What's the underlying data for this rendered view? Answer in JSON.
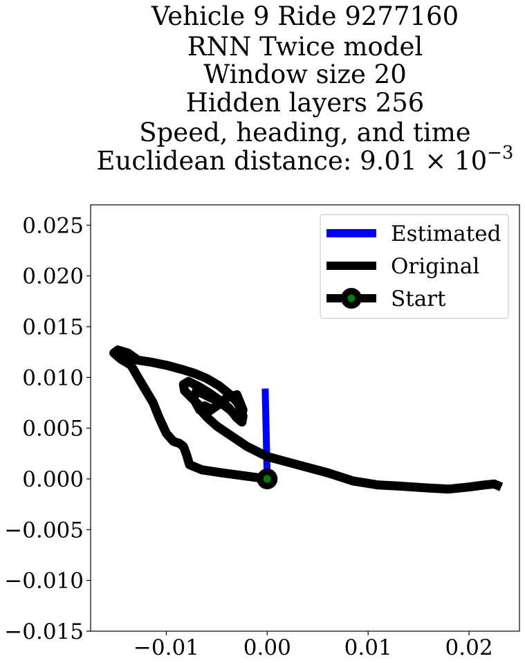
{
  "chart_data": {
    "type": "line",
    "title_lines": [
      "Vehicle 9 Ride 9277160",
      "RNN Twice model",
      "Window size 20",
      "Hidden layers 256",
      "Speed, heading, and time"
    ],
    "title_last_prefix": "Euclidean distance: 9.01 × 10",
    "title_last_exponent": "−3",
    "xlim": [
      -0.0175,
      0.025
    ],
    "ylim": [
      -0.015,
      0.027
    ],
    "x_ticks": [
      -0.01,
      0.0,
      0.01,
      0.02
    ],
    "x_tick_labels": [
      "−0.01",
      "0.00",
      "0.01",
      "0.02"
    ],
    "y_ticks": [
      0.025,
      0.02,
      0.015,
      0.01,
      0.005,
      0.0,
      -0.005,
      -0.01,
      -0.015
    ],
    "y_tick_labels": [
      "0.025",
      "0.020",
      "0.015",
      "0.010",
      "0.005",
      "0.000",
      "−0.005",
      "−0.010",
      "−0.015"
    ],
    "grid": false,
    "legend_placement": "top-right",
    "series": [
      {
        "name": "Estimated",
        "color": "#0000ff",
        "x": [
          0.0,
          -0.0002
        ],
        "y": [
          0.0,
          0.0089
        ]
      },
      {
        "name": "Original",
        "color": "#000000",
        "x": [
          0.0,
          -0.0045,
          -0.0065,
          -0.0077,
          -0.008,
          -0.0083,
          -0.0087,
          -0.0093,
          -0.01,
          -0.0107,
          -0.0113,
          -0.0122,
          -0.0128,
          -0.0135,
          -0.0145,
          -0.0152,
          -0.0148,
          -0.0138,
          -0.0128,
          -0.0115,
          -0.01,
          -0.0085,
          -0.0072,
          -0.006,
          -0.0048,
          -0.0038,
          -0.003,
          -0.0026,
          -0.0024,
          -0.0025,
          -0.003,
          -0.0038,
          -0.0048,
          -0.0058,
          -0.0068,
          -0.0078,
          -0.0083,
          -0.0082,
          -0.0075,
          -0.0067,
          -0.006,
          -0.0056,
          -0.0062,
          -0.0067,
          -0.006,
          -0.005,
          -0.004,
          -0.003,
          -0.0024,
          -0.0026,
          -0.0033,
          -0.0042,
          -0.0052,
          -0.0062,
          -0.007,
          -0.0073,
          -0.0068,
          -0.006,
          -0.005,
          -0.0035,
          -0.002,
          0.0,
          0.003,
          0.006,
          0.0085,
          0.011,
          0.013,
          0.016,
          0.018,
          0.02,
          0.0215,
          0.0225,
          0.0232
        ],
        "y": [
          0.0,
          0.0006,
          0.0009,
          0.0014,
          0.0024,
          0.0032,
          0.0035,
          0.0037,
          0.0045,
          0.006,
          0.0075,
          0.009,
          0.01,
          0.0112,
          0.0118,
          0.0124,
          0.0127,
          0.0124,
          0.0117,
          0.0115,
          0.0112,
          0.0108,
          0.0104,
          0.0099,
          0.0092,
          0.0084,
          0.0076,
          0.0069,
          0.0062,
          0.0056,
          0.006,
          0.007,
          0.0078,
          0.0085,
          0.0091,
          0.0096,
          0.0093,
          0.0087,
          0.008,
          0.0072,
          0.0066,
          0.0069,
          0.0072,
          0.0068,
          0.0065,
          0.0072,
          0.008,
          0.0083,
          0.0068,
          0.0062,
          0.0065,
          0.0072,
          0.0078,
          0.0083,
          0.0087,
          0.0079,
          0.007,
          0.0061,
          0.0052,
          0.0042,
          0.0032,
          0.0022,
          0.0014,
          0.0006,
          -0.0002,
          -0.0006,
          -0.0007,
          -0.0009,
          -0.001,
          -0.0008,
          -0.0006,
          -0.0005,
          -0.0008
        ]
      }
    ],
    "start_point": {
      "name": "Start",
      "x": 0.0,
      "y": 0.0,
      "outer_color": "#000000",
      "inner_color": "#008000"
    }
  }
}
